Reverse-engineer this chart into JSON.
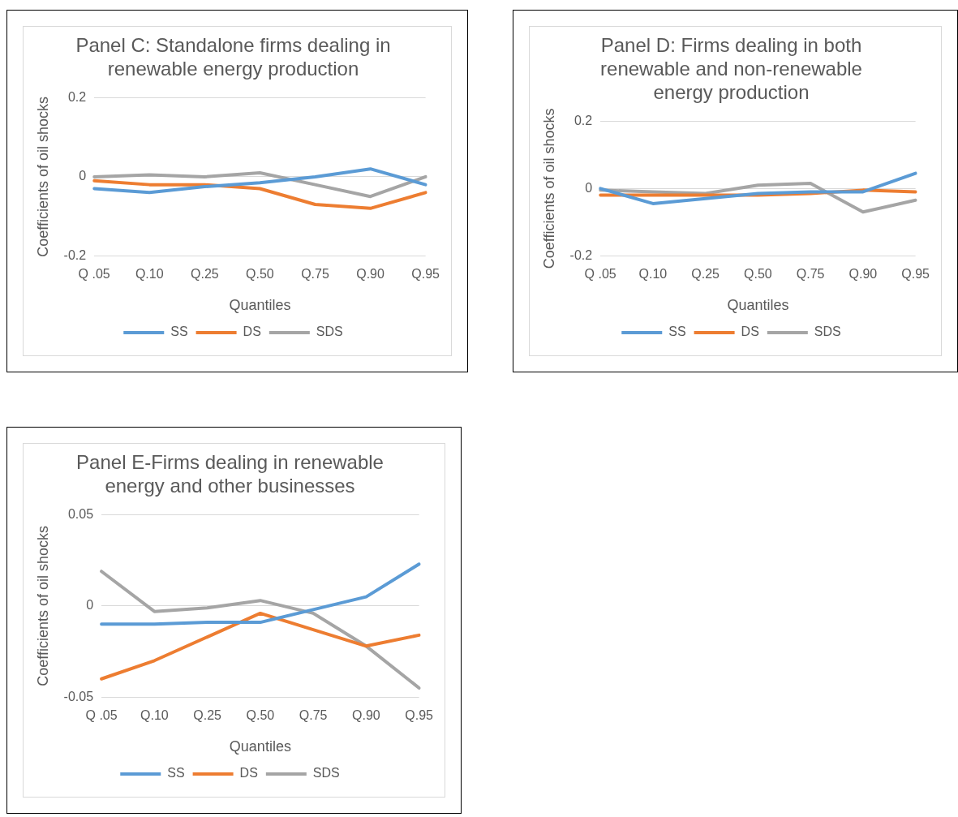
{
  "chart_data": [
    {
      "type": "line",
      "title": "Panel C: Standalone firms dealing in renewable energy production",
      "xlabel": "Quantiles",
      "ylabel": "Coefficients of oil shocks",
      "categories": [
        "Q .05",
        "Q.10",
        "Q.25",
        "Q.50",
        "Q.75",
        "Q.90",
        "Q.95"
      ],
      "series": [
        {
          "name": "SS",
          "color": "#5b9bd5",
          "values": [
            -0.03,
            -0.04,
            -0.025,
            -0.015,
            0,
            0.02,
            -0.02
          ]
        },
        {
          "name": "DS",
          "color": "#ed7d31",
          "values": [
            -0.01,
            -0.02,
            -0.02,
            -0.03,
            -0.07,
            -0.08,
            -0.04
          ]
        },
        {
          "name": "SDS",
          "color": "#a5a5a5",
          "values": [
            0,
            0.005,
            0,
            0.01,
            -0.02,
            -0.05,
            0
          ]
        }
      ],
      "ylim": [
        -0.2,
        0.2
      ],
      "yticks": [
        -0.2,
        0,
        0.2
      ],
      "grid": "y",
      "legend": "bottom",
      "marker": "none"
    },
    {
      "type": "line",
      "title": "Panel D: Firms dealing in both renewable and non-renewable energy production",
      "xlabel": "Quantiles",
      "ylabel": "Coefficients of oil shocks",
      "categories": [
        "Q .05",
        "Q.10",
        "Q.25",
        "Q.50",
        "Q.75",
        "Q.90",
        "Q.95"
      ],
      "series": [
        {
          "name": "SS",
          "color": "#5b9bd5",
          "values": [
            0,
            -0.045,
            -0.03,
            -0.015,
            -0.01,
            -0.01,
            0.045
          ]
        },
        {
          "name": "DS",
          "color": "#ed7d31",
          "values": [
            -0.02,
            -0.02,
            -0.02,
            -0.02,
            -0.015,
            -0.005,
            -0.01
          ]
        },
        {
          "name": "SDS",
          "color": "#a5a5a5",
          "values": [
            -0.005,
            -0.01,
            -0.015,
            0.01,
            0.015,
            -0.07,
            -0.035
          ]
        }
      ],
      "ylim": [
        -0.2,
        0.2
      ],
      "yticks": [
        -0.2,
        0,
        0.2
      ],
      "grid": "y",
      "legend": "bottom",
      "marker": "none"
    },
    {
      "type": "line",
      "title": "Panel E-Firms dealing in renewable energy and other businesses",
      "xlabel": "Quantiles",
      "ylabel": "Coefficients of oil shocks",
      "categories": [
        "Q .05",
        "Q.10",
        "Q.25",
        "Q.50",
        "Q.75",
        "Q.90",
        "Q.95"
      ],
      "series": [
        {
          "name": "SS",
          "color": "#5b9bd5",
          "values": [
            -0.01,
            -0.01,
            -0.009,
            -0.009,
            -0.002,
            0.005,
            0.023
          ]
        },
        {
          "name": "DS",
          "color": "#ed7d31",
          "values": [
            -0.04,
            -0.03,
            -0.017,
            -0.004,
            -0.013,
            -0.022,
            -0.016
          ]
        },
        {
          "name": "SDS",
          "color": "#a5a5a5",
          "values": [
            0.019,
            -0.003,
            -0.001,
            0.003,
            -0.004,
            -0.022,
            -0.045
          ]
        }
      ],
      "ylim": [
        -0.05,
        0.05
      ],
      "yticks": [
        -0.05,
        0,
        0.05
      ],
      "grid": "y",
      "legend": "bottom",
      "marker": "none"
    }
  ]
}
